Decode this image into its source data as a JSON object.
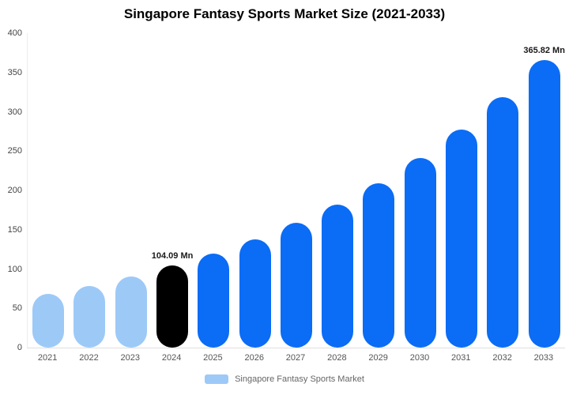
{
  "title": "Singapore Fantasy Sports Market Size (2021-2033)",
  "legend": {
    "label": "Singapore Fantasy Sports Market",
    "swatch_color": "#9DC9F7"
  },
  "colors": {
    "light_blue": "#9DC9F7",
    "blue": "#0B6CF5",
    "black": "#000000"
  },
  "chart_data": {
    "type": "bar",
    "title": "Singapore Fantasy Sports Market Size (2021-2033)",
    "categories": [
      "2021",
      "2022",
      "2023",
      "2024",
      "2025",
      "2026",
      "2027",
      "2028",
      "2029",
      "2030",
      "2031",
      "2032",
      "2033"
    ],
    "values": [
      68.4,
      78.7,
      90.5,
      104.09,
      119.7,
      137.7,
      158.3,
      182.1,
      209.4,
      240.8,
      276.9,
      318.4,
      365.82
    ],
    "unit": "Mn",
    "bar_colors": [
      "#9DC9F7",
      "#9DC9F7",
      "#9DC9F7",
      "#000000",
      "#0B6CF5",
      "#0B6CF5",
      "#0B6CF5",
      "#0B6CF5",
      "#0B6CF5",
      "#0B6CF5",
      "#0B6CF5",
      "#0B6CF5",
      "#0B6CF5"
    ],
    "data_labels": [
      "",
      "",
      "",
      "104.09 Mn",
      "",
      "",
      "",
      "",
      "",
      "",
      "",
      "",
      "365.82 Mn"
    ],
    "xlabel": "",
    "ylabel": "",
    "ylim": [
      0,
      400
    ],
    "yticks": [
      0,
      50,
      100,
      150,
      200,
      250,
      300,
      350,
      400
    ],
    "grid": false,
    "legend_position": "bottom",
    "legend_entries": [
      "Singapore Fantasy Sports Market"
    ]
  }
}
